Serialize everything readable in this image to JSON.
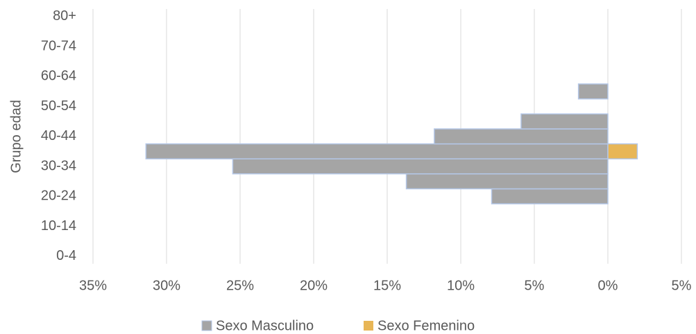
{
  "chart_data": {
    "type": "bar",
    "orientation": "horizontal",
    "y_label": "Grupo edad",
    "categories": [
      "0-4",
      null,
      "10-14",
      null,
      "20-24",
      null,
      "30-34",
      null,
      "40-44",
      null,
      "50-54",
      null,
      "60-64",
      null,
      "70-74",
      null,
      "80+"
    ],
    "series": [
      {
        "name": "Sexo Masculino",
        "color": "#a5a5a5",
        "values": [
          null,
          null,
          null,
          null,
          -7.9,
          -13.7,
          -25.5,
          -31.4,
          -11.8,
          -5.9,
          null,
          -2.0,
          null,
          null,
          null,
          null,
          null
        ]
      },
      {
        "name": "Sexo Femenino",
        "color": "#e8b656",
        "values": [
          null,
          null,
          null,
          null,
          null,
          null,
          null,
          2.0,
          null,
          null,
          null,
          null,
          null,
          null,
          null,
          null,
          null
        ]
      }
    ],
    "xlim": [
      -35,
      5
    ],
    "xticks": [
      {
        "value": -35,
        "label": "35%"
      },
      {
        "value": -30,
        "label": "30%"
      },
      {
        "value": -25,
        "label": "25%"
      },
      {
        "value": -20,
        "label": "20%"
      },
      {
        "value": -15,
        "label": "15%"
      },
      {
        "value": -10,
        "label": "10%"
      },
      {
        "value": -5,
        "label": "5%"
      },
      {
        "value": 0,
        "label": "0%"
      },
      {
        "value": 5,
        "label": "5%"
      }
    ],
    "grid": true,
    "legend": "bottom"
  }
}
